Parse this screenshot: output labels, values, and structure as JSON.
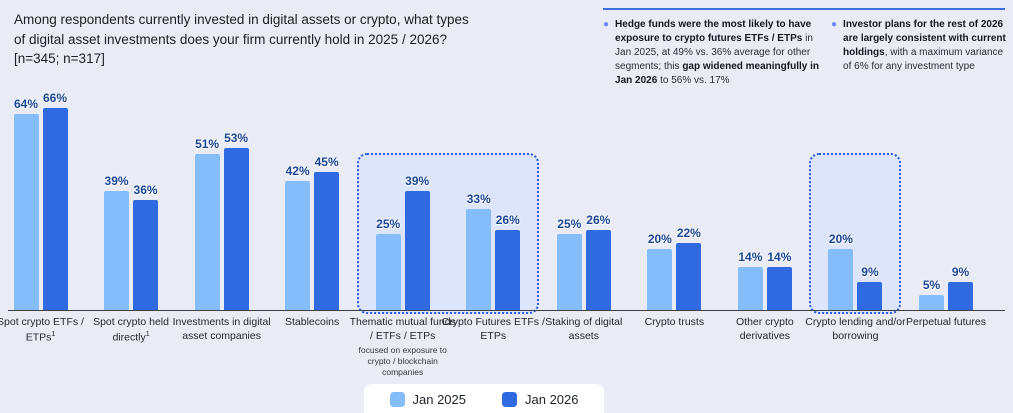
{
  "title": {
    "lines": [
      "Among respondents currently invested in digital assets or crypto, what types",
      "of digital asset investments does your firm currently hold in 2025 / 2026?",
      "[n=345; n=317]"
    ]
  },
  "callouts": {
    "bullet_glyph": "●",
    "divider_color": "#3e6be0",
    "items": [
      {
        "segments": [
          {
            "t": "Hedge funds were the most likely to have exposure to crypto futures ETFs / ETPs",
            "b": true
          },
          {
            "t": " in Jan 2025, at 49% vs. 36% average for other segments; this ",
            "b": false
          },
          {
            "t": "gap widened meaningfully in Jan 2026",
            "b": true
          },
          {
            "t": " to 56% vs. 17%",
            "b": false
          }
        ]
      },
      {
        "segments": [
          {
            "t": "Investor plans for the rest of 2026 are largely consistent with current holdings",
            "b": true
          },
          {
            "t": ", with a maximum variance of 6% for any investment type",
            "b": false
          }
        ]
      }
    ]
  },
  "chart_data": {
    "type": "bar",
    "title": "Among respondents currently invested in digital assets or crypto, what types of digital asset investments does your firm currently hold in 2025 / 2026? [n=345; n=317]",
    "value_suffix": "%",
    "ylim": [
      0,
      70
    ],
    "grid": false,
    "legend_position": "bottom",
    "value_label_color": "#1b4693",
    "categories": [
      {
        "label": "Spot crypto ETFs / ETPs",
        "sup": "1"
      },
      {
        "label": "Spot crypto held directly",
        "sup": "1"
      },
      {
        "label": "Investments in digital asset companies"
      },
      {
        "label": "Stablecoins"
      },
      {
        "label": "Thematic mutual funds / ETFs / ETPs",
        "sub": "focused on exposure to crypto / blockchain companies"
      },
      {
        "label": "Crypto Futures ETFs / ETPs"
      },
      {
        "label": "Staking of digital assets"
      },
      {
        "label": "Crypto trusts"
      },
      {
        "label": "Other crypto derivatives"
      },
      {
        "label": "Crypto lending and/or borrowing"
      },
      {
        "label": "Perpetual futures"
      }
    ],
    "series": [
      {
        "name": "Jan 2025",
        "color": "#85bdfa",
        "values": [
          64,
          39,
          51,
          42,
          25,
          33,
          25,
          20,
          14,
          20,
          5
        ]
      },
      {
        "name": "Jan 2026",
        "color": "#2f6ae0",
        "values": [
          66,
          36,
          53,
          45,
          39,
          26,
          26,
          22,
          14,
          9,
          9
        ]
      }
    ],
    "highlight_boxes": [
      {
        "from": 4,
        "to": 5
      },
      {
        "from": 9,
        "to": 9
      }
    ]
  }
}
